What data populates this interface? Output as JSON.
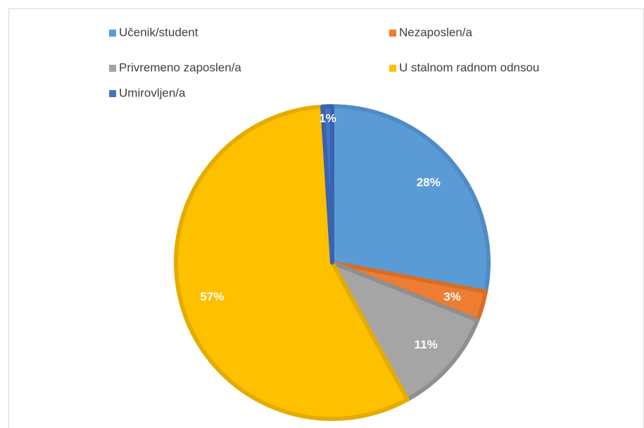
{
  "chart_data": {
    "type": "pie",
    "categories": [
      "Učenik/student",
      "Nezaposlen/a",
      "Privremeno zaposlen/a",
      "U stalnom radnom odnsou",
      "Umirovljen/a"
    ],
    "values": [
      28,
      3,
      11,
      57,
      1
    ],
    "value_labels": [
      "28%",
      "3%",
      "11%",
      "57%",
      "1%"
    ],
    "colors": [
      "#5b9bd5",
      "#ed7d31",
      "#a5a5a5",
      "#ffc000",
      "#4472c4"
    ],
    "edge_colors": [
      "#4f8cc6",
      "#d86e25",
      "#8f8f8f",
      "#e5ac00",
      "#3a63b0"
    ],
    "legend": "top"
  }
}
